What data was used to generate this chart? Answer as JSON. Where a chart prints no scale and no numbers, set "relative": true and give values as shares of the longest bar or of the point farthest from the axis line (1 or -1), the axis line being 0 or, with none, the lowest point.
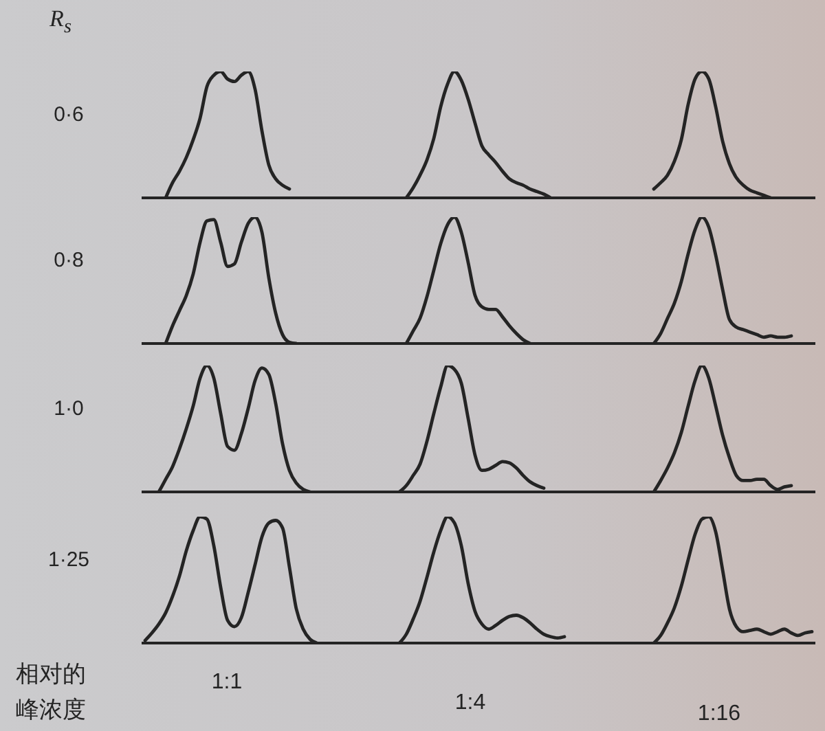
{
  "chart_data": [
    {
      "type": "line",
      "relative": true,
      "ylabel": "0·6",
      "annotations": [
        "R$_{s}$"
      ],
      "categories": [
        null,
        null,
        null,
        null,
        null,
        null,
        null,
        null,
        null,
        null,
        null,
        null,
        null,
        null,
        null,
        null,
        null,
        null,
        null,
        null,
        null,
        null,
        null,
        null,
        null,
        null,
        null,
        null,
        null,
        null,
        null,
        null,
        null
      ],
      "series": [
        {
          "color": "#242424",
          "values": [
            null,
            null,
            null,
            0,
            0.12,
            0.21,
            0.32,
            0.46,
            0.63,
            0.88,
            0.97,
            1,
            0.94,
            0.92,
            0.97,
            1,
            0.86,
            0.53,
            0.26,
            0.15,
            0.1,
            0.07,
            null,
            null,
            null,
            null,
            null,
            null,
            null,
            null,
            null,
            null,
            null
          ]
        }
      ]
    },
    {
      "type": "line",
      "relative": true,
      "categories": [
        null,
        null,
        null,
        null,
        null,
        null,
        null,
        null,
        null,
        null,
        null,
        null,
        null,
        null,
        null,
        null,
        null,
        null,
        null,
        null,
        null,
        null,
        null,
        null,
        null,
        null,
        null,
        null,
        null,
        null,
        null,
        null,
        null,
        null,
        null,
        null
      ],
      "series": [
        {
          "color": "#242424",
          "values": [
            null,
            null,
            null,
            null,
            null,
            0,
            0.08,
            0.18,
            0.3,
            0.47,
            0.72,
            0.9,
            1,
            0.93,
            0.78,
            0.59,
            0.41,
            0.34,
            0.28,
            0.21,
            0.15,
            0.12,
            0.1,
            0.07,
            0.05,
            0.03,
            0,
            null,
            null,
            null,
            null,
            null,
            null,
            null,
            null,
            null
          ]
        }
      ]
    },
    {
      "type": "line",
      "relative": true,
      "categories": [
        null,
        null,
        null,
        null,
        null,
        null,
        null,
        null,
        null,
        null,
        null,
        null,
        null,
        null,
        null,
        null,
        null,
        null,
        null,
        null,
        null,
        null,
        null,
        null,
        null,
        null,
        null,
        null,
        null
      ],
      "series": [
        {
          "color": "#242424",
          "values": [
            null,
            null,
            null,
            null,
            null,
            0.07,
            0.12,
            0.18,
            0.29,
            0.46,
            0.74,
            0.94,
            1,
            0.94,
            0.72,
            0.45,
            0.27,
            0.16,
            0.1,
            0.06,
            0.04,
            0.02,
            0,
            null,
            null,
            null,
            null,
            null,
            null
          ]
        }
      ]
    },
    {
      "type": "line",
      "relative": true,
      "ylabel": "0·8",
      "categories": [
        null,
        null,
        null,
        null,
        null,
        null,
        null,
        null,
        null,
        null,
        null,
        null,
        null,
        null,
        null,
        null,
        null,
        null,
        null,
        null,
        null,
        null,
        null,
        null,
        null,
        null,
        null,
        null,
        null,
        null,
        null,
        null,
        null
      ],
      "series": [
        {
          "color": "#242424",
          "values": [
            null,
            null,
            null,
            0,
            0.14,
            0.26,
            0.38,
            0.55,
            0.8,
            0.97,
            0.98,
            0.8,
            0.61,
            0.63,
            0.8,
            0.95,
            1,
            0.88,
            0.52,
            0.24,
            0.07,
            0.01,
            0,
            null,
            null,
            null,
            null,
            null,
            null,
            null,
            null,
            null,
            null
          ]
        }
      ]
    },
    {
      "type": "line",
      "relative": true,
      "categories": [
        null,
        null,
        null,
        null,
        null,
        null,
        null,
        null,
        null,
        null,
        null,
        null,
        null,
        null,
        null,
        null,
        null,
        null,
        null,
        null,
        null,
        null,
        null,
        null,
        null,
        null,
        null,
        null,
        null,
        null,
        null,
        null,
        null,
        null,
        null,
        null
      ],
      "series": [
        {
          "color": "#242424",
          "values": [
            null,
            null,
            null,
            null,
            null,
            0,
            0.1,
            0.2,
            0.37,
            0.58,
            0.79,
            0.94,
            1,
            0.88,
            0.64,
            0.38,
            0.29,
            0.27,
            0.27,
            0.21,
            0.14,
            0.08,
            0.03,
            0,
            null,
            null,
            null,
            null,
            null,
            null,
            null,
            null,
            null,
            null,
            null,
            null
          ]
        }
      ]
    },
    {
      "type": "line",
      "relative": true,
      "categories": [
        null,
        null,
        null,
        null,
        null,
        null,
        null,
        null,
        null,
        null,
        null,
        null,
        null,
        null,
        null,
        null,
        null,
        null,
        null,
        null,
        null,
        null,
        null,
        null,
        null,
        null,
        null,
        null,
        null
      ],
      "series": [
        {
          "color": "#242424",
          "values": [
            null,
            null,
            null,
            null,
            null,
            0,
            0.08,
            0.2,
            0.32,
            0.49,
            0.71,
            0.9,
            1,
            0.92,
            0.7,
            0.43,
            0.19,
            0.13,
            0.11,
            0.09,
            0.07,
            0.05,
            0.06,
            0.05,
            0.05,
            0.06,
            null,
            null,
            null
          ]
        }
      ]
    },
    {
      "type": "line",
      "relative": true,
      "ylabel": "1·0",
      "categories": [
        null,
        null,
        null,
        null,
        null,
        null,
        null,
        null,
        null,
        null,
        null,
        null,
        null,
        null,
        null,
        null,
        null,
        null,
        null,
        null,
        null,
        null,
        null,
        null,
        null,
        null,
        null,
        null,
        null,
        null,
        null,
        null,
        null
      ],
      "series": [
        {
          "color": "#242424",
          "values": [
            null,
            null,
            0,
            0.1,
            0.2,
            0.34,
            0.5,
            0.68,
            0.9,
            1,
            0.9,
            0.62,
            0.36,
            0.33,
            0.46,
            0.66,
            0.88,
            0.98,
            0.93,
            0.7,
            0.38,
            0.17,
            0.07,
            0.02,
            0,
            null,
            null,
            null,
            null,
            null,
            null,
            null,
            null
          ]
        }
      ]
    },
    {
      "type": "line",
      "relative": true,
      "categories": [
        null,
        null,
        null,
        null,
        null,
        null,
        null,
        null,
        null,
        null,
        null,
        null,
        null,
        null,
        null,
        null,
        null,
        null,
        null,
        null,
        null,
        null,
        null,
        null,
        null,
        null,
        null,
        null,
        null,
        null,
        null,
        null,
        null,
        null,
        null,
        null
      ],
      "series": [
        {
          "color": "#242424",
          "values": [
            null,
            null,
            null,
            null,
            0,
            0.05,
            0.13,
            0.22,
            0.4,
            0.62,
            0.83,
            1,
            0.97,
            0.86,
            0.58,
            0.29,
            0.17,
            0.18,
            0.21,
            0.24,
            0.23,
            0.19,
            0.13,
            0.08,
            0.05,
            0.03,
            null,
            null,
            null,
            null,
            null,
            null,
            null,
            null,
            null,
            null
          ]
        }
      ]
    },
    {
      "type": "line",
      "relative": true,
      "categories": [
        null,
        null,
        null,
        null,
        null,
        null,
        null,
        null,
        null,
        null,
        null,
        null,
        null,
        null,
        null,
        null,
        null,
        null,
        null,
        null,
        null,
        null,
        null,
        null,
        null,
        null,
        null,
        null,
        null
      ],
      "series": [
        {
          "color": "#242424",
          "values": [
            null,
            null,
            null,
            null,
            null,
            0,
            0.09,
            0.19,
            0.31,
            0.47,
            0.68,
            0.88,
            1,
            0.9,
            0.68,
            0.45,
            0.27,
            0.13,
            0.09,
            0.09,
            0.1,
            0.1,
            0.05,
            0.02,
            0.04,
            0.05,
            null,
            null,
            null
          ]
        }
      ]
    },
    {
      "type": "line",
      "relative": true,
      "ylabel": "1·25",
      "xlabel": "1:1",
      "annotations": [
        "相对的峰浓度"
      ],
      "categories": [
        null,
        null,
        null,
        null,
        null,
        null,
        null,
        null,
        null,
        null,
        null,
        null,
        null,
        null,
        null,
        null,
        null,
        null,
        null,
        null,
        null,
        null,
        null,
        null,
        null,
        null,
        null,
        null,
        null,
        null,
        null,
        null,
        null
      ],
      "series": [
        {
          "color": "#242424",
          "values": [
            0.02,
            0.08,
            0.15,
            0.24,
            0.37,
            0.53,
            0.73,
            0.89,
            1,
            0.98,
            0.77,
            0.44,
            0.18,
            0.13,
            0.2,
            0.4,
            0.62,
            0.84,
            0.95,
            0.97,
            0.91,
            0.6,
            0.27,
            0.11,
            0.03,
            0,
            null,
            null,
            null,
            null,
            null,
            null,
            null
          ]
        }
      ]
    },
    {
      "type": "line",
      "relative": true,
      "xlabel": "1:4",
      "categories": [
        null,
        null,
        null,
        null,
        null,
        null,
        null,
        null,
        null,
        null,
        null,
        null,
        null,
        null,
        null,
        null,
        null,
        null,
        null,
        null,
        null,
        null,
        null,
        null,
        null,
        null,
        null,
        null,
        null,
        null,
        null,
        null,
        null,
        null,
        null,
        null
      ],
      "series": [
        {
          "color": "#242424",
          "values": [
            null,
            null,
            null,
            null,
            0,
            0.07,
            0.19,
            0.33,
            0.52,
            0.72,
            0.89,
            1,
            0.95,
            0.77,
            0.47,
            0.25,
            0.15,
            0.11,
            0.14,
            0.18,
            0.21,
            0.22,
            0.2,
            0.16,
            0.11,
            0.07,
            0.05,
            0.04,
            0.05,
            null,
            null,
            null,
            null,
            null,
            null,
            null
          ]
        }
      ]
    },
    {
      "type": "line",
      "relative": true,
      "xlabel": "1:16",
      "categories": [
        null,
        null,
        null,
        null,
        null,
        null,
        null,
        null,
        null,
        null,
        null,
        null,
        null,
        null,
        null,
        null,
        null,
        null,
        null,
        null,
        null,
        null,
        null,
        null,
        null,
        null,
        null,
        null,
        null
      ],
      "series": [
        {
          "color": "#242424",
          "values": [
            null,
            null,
            null,
            null,
            null,
            0,
            0.06,
            0.16,
            0.28,
            0.45,
            0.66,
            0.86,
            0.98,
            1,
            0.88,
            0.58,
            0.27,
            0.13,
            0.09,
            0.1,
            0.11,
            0.09,
            0.07,
            0.09,
            0.11,
            0.08,
            0.06,
            0.08,
            0.09
          ]
        }
      ]
    }
  ]
}
